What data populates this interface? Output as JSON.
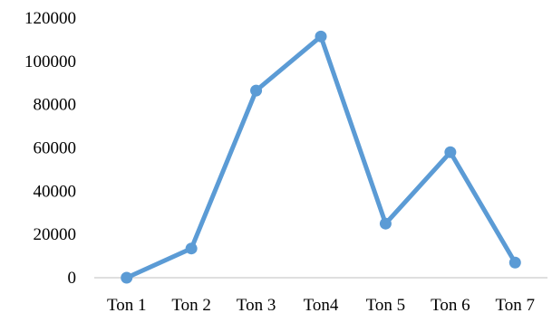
{
  "chart_data": {
    "type": "line",
    "title": "",
    "xlabel": "",
    "ylabel": "",
    "categories": [
      "Ton 1",
      "Ton 2",
      "Ton 3",
      "Ton4",
      "Ton 5",
      "Ton 6",
      "Ton 7"
    ],
    "series": [
      {
        "values": [
          0,
          13500,
          86500,
          111500,
          25000,
          58000,
          7000
        ],
        "color": "#5b9bd5"
      }
    ],
    "ylim": [
      0,
      120000
    ],
    "yticks": [
      0,
      20000,
      40000,
      60000,
      80000,
      100000,
      120000
    ],
    "ytick_labels": [
      "0",
      "20000",
      "40000",
      "60000",
      "80000",
      "100000",
      "120000"
    ],
    "grid": false,
    "legend": "none",
    "markers": true
  }
}
